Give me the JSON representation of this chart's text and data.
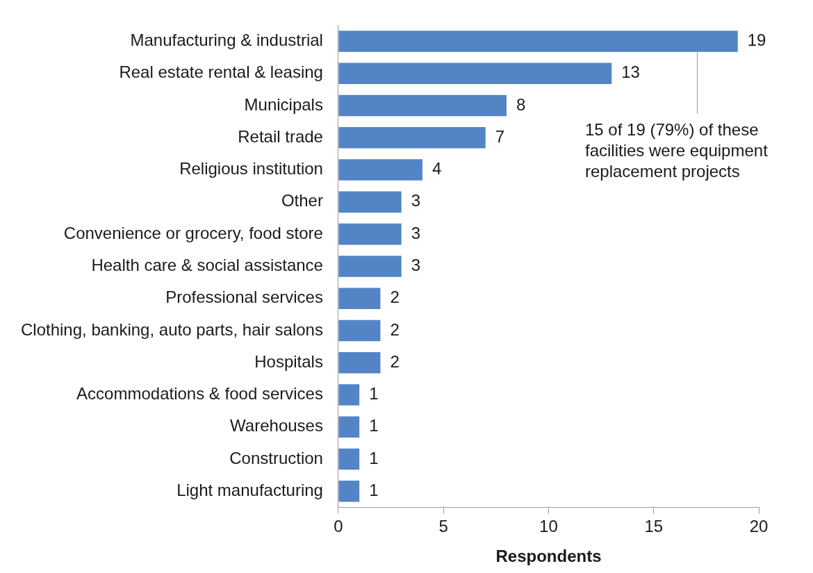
{
  "chart_data": {
    "type": "bar",
    "orientation": "horizontal",
    "categories": [
      "Manufacturing & industrial",
      "Real estate rental & leasing",
      "Municipals",
      "Retail trade",
      "Religious institution",
      "Other",
      "Convenience or grocery, food store",
      "Health care & social assistance",
      "Professional services",
      "Clothing, banking, auto parts, hair salons",
      "Hospitals",
      "Accommodations & food services",
      "Warehouses",
      "Construction",
      "Light manufacturing"
    ],
    "values": [
      19,
      13,
      8,
      7,
      4,
      3,
      3,
      3,
      2,
      2,
      2,
      1,
      1,
      1,
      1
    ],
    "color": "#5384c6",
    "xlabel": "Respondents",
    "xlim": [
      0,
      20
    ],
    "xticks": [
      0,
      5,
      10,
      15,
      20
    ],
    "grid": false,
    "legend": false,
    "data_labels": true,
    "annotations": [
      "15 of 19 (79%) of these facilities were equipment replacement projects"
    ]
  }
}
